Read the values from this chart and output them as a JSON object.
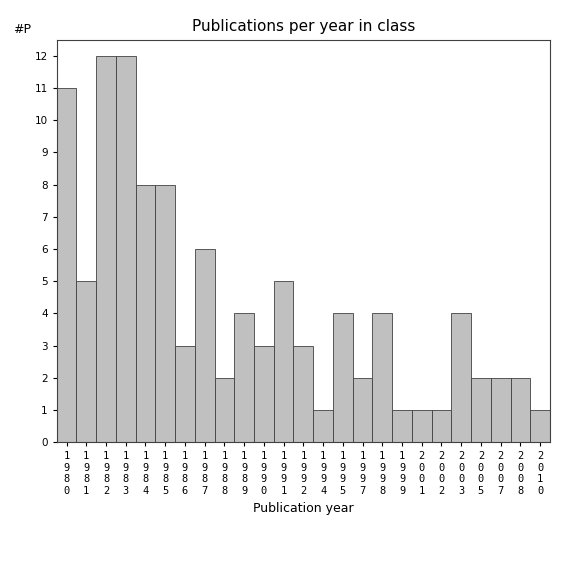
{
  "categories": [
    "1980",
    "1981",
    "1982",
    "1983",
    "1984",
    "1985",
    "1986",
    "1987",
    "1988",
    "1989",
    "1990",
    "1991",
    "1992",
    "1994",
    "1995",
    "1997",
    "1998",
    "1999",
    "2001",
    "2002",
    "2003",
    "2005",
    "2007",
    "2008",
    "2010"
  ],
  "values": [
    11,
    5,
    12,
    12,
    8,
    8,
    3,
    6,
    2,
    4,
    3,
    5,
    3,
    1,
    4,
    2,
    4,
    1,
    1,
    1,
    4,
    2,
    2,
    2,
    1
  ],
  "bar_color": "#c0c0c0",
  "bar_edge_color": "#404040",
  "title": "Publications per year in class",
  "ylabel": "#P",
  "xlabel": "Publication year",
  "ylim": [
    0,
    12.5
  ],
  "yticks": [
    0,
    1,
    2,
    3,
    4,
    5,
    6,
    7,
    8,
    9,
    10,
    11,
    12
  ],
  "title_fontsize": 11,
  "label_fontsize": 9,
  "tick_fontsize": 7.5,
  "background_color": "#ffffff"
}
